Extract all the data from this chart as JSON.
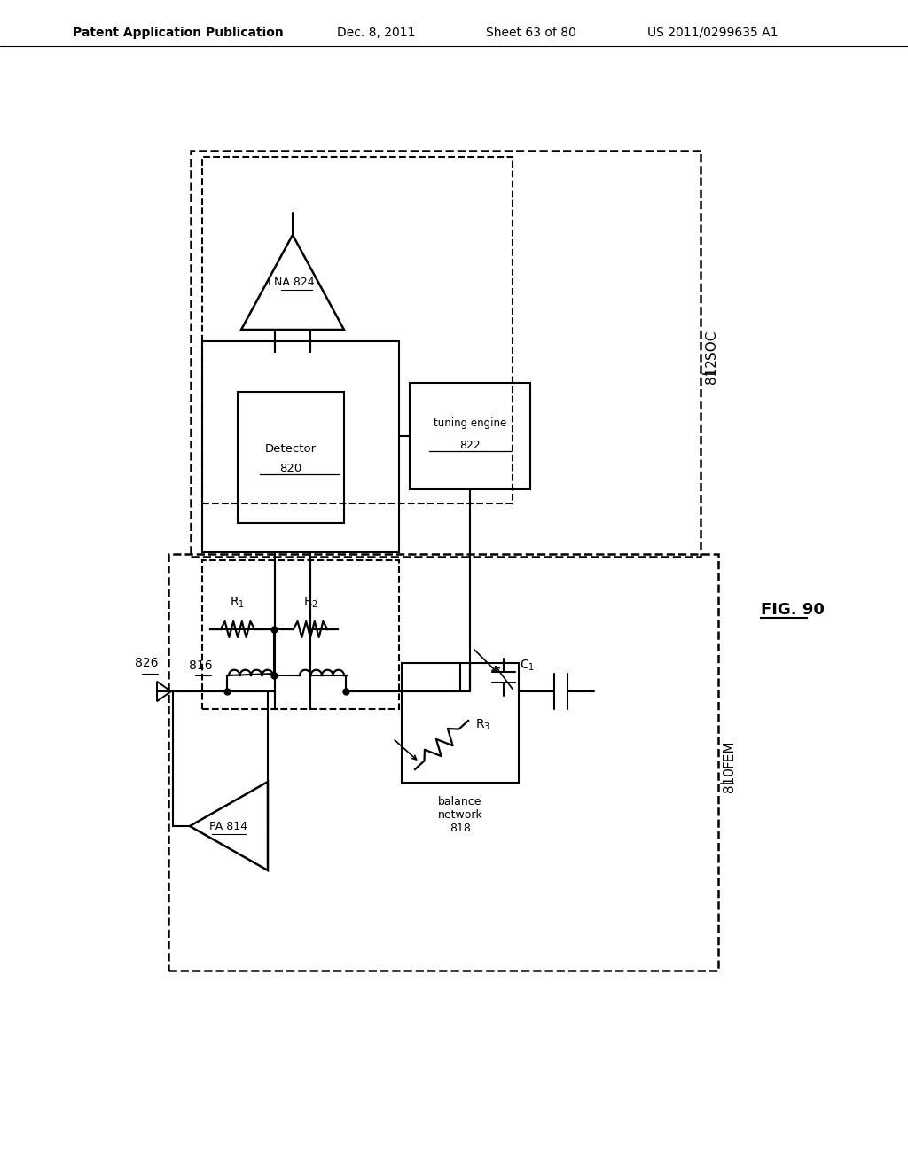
{
  "bg_color": "#ffffff",
  "header_text": "Patent Application Publication",
  "header_date": "Dec. 8, 2011",
  "header_sheet": "Sheet 63 of 80",
  "header_patent": "US 2011/0299635 A1",
  "fig_label": "FIG. 90"
}
